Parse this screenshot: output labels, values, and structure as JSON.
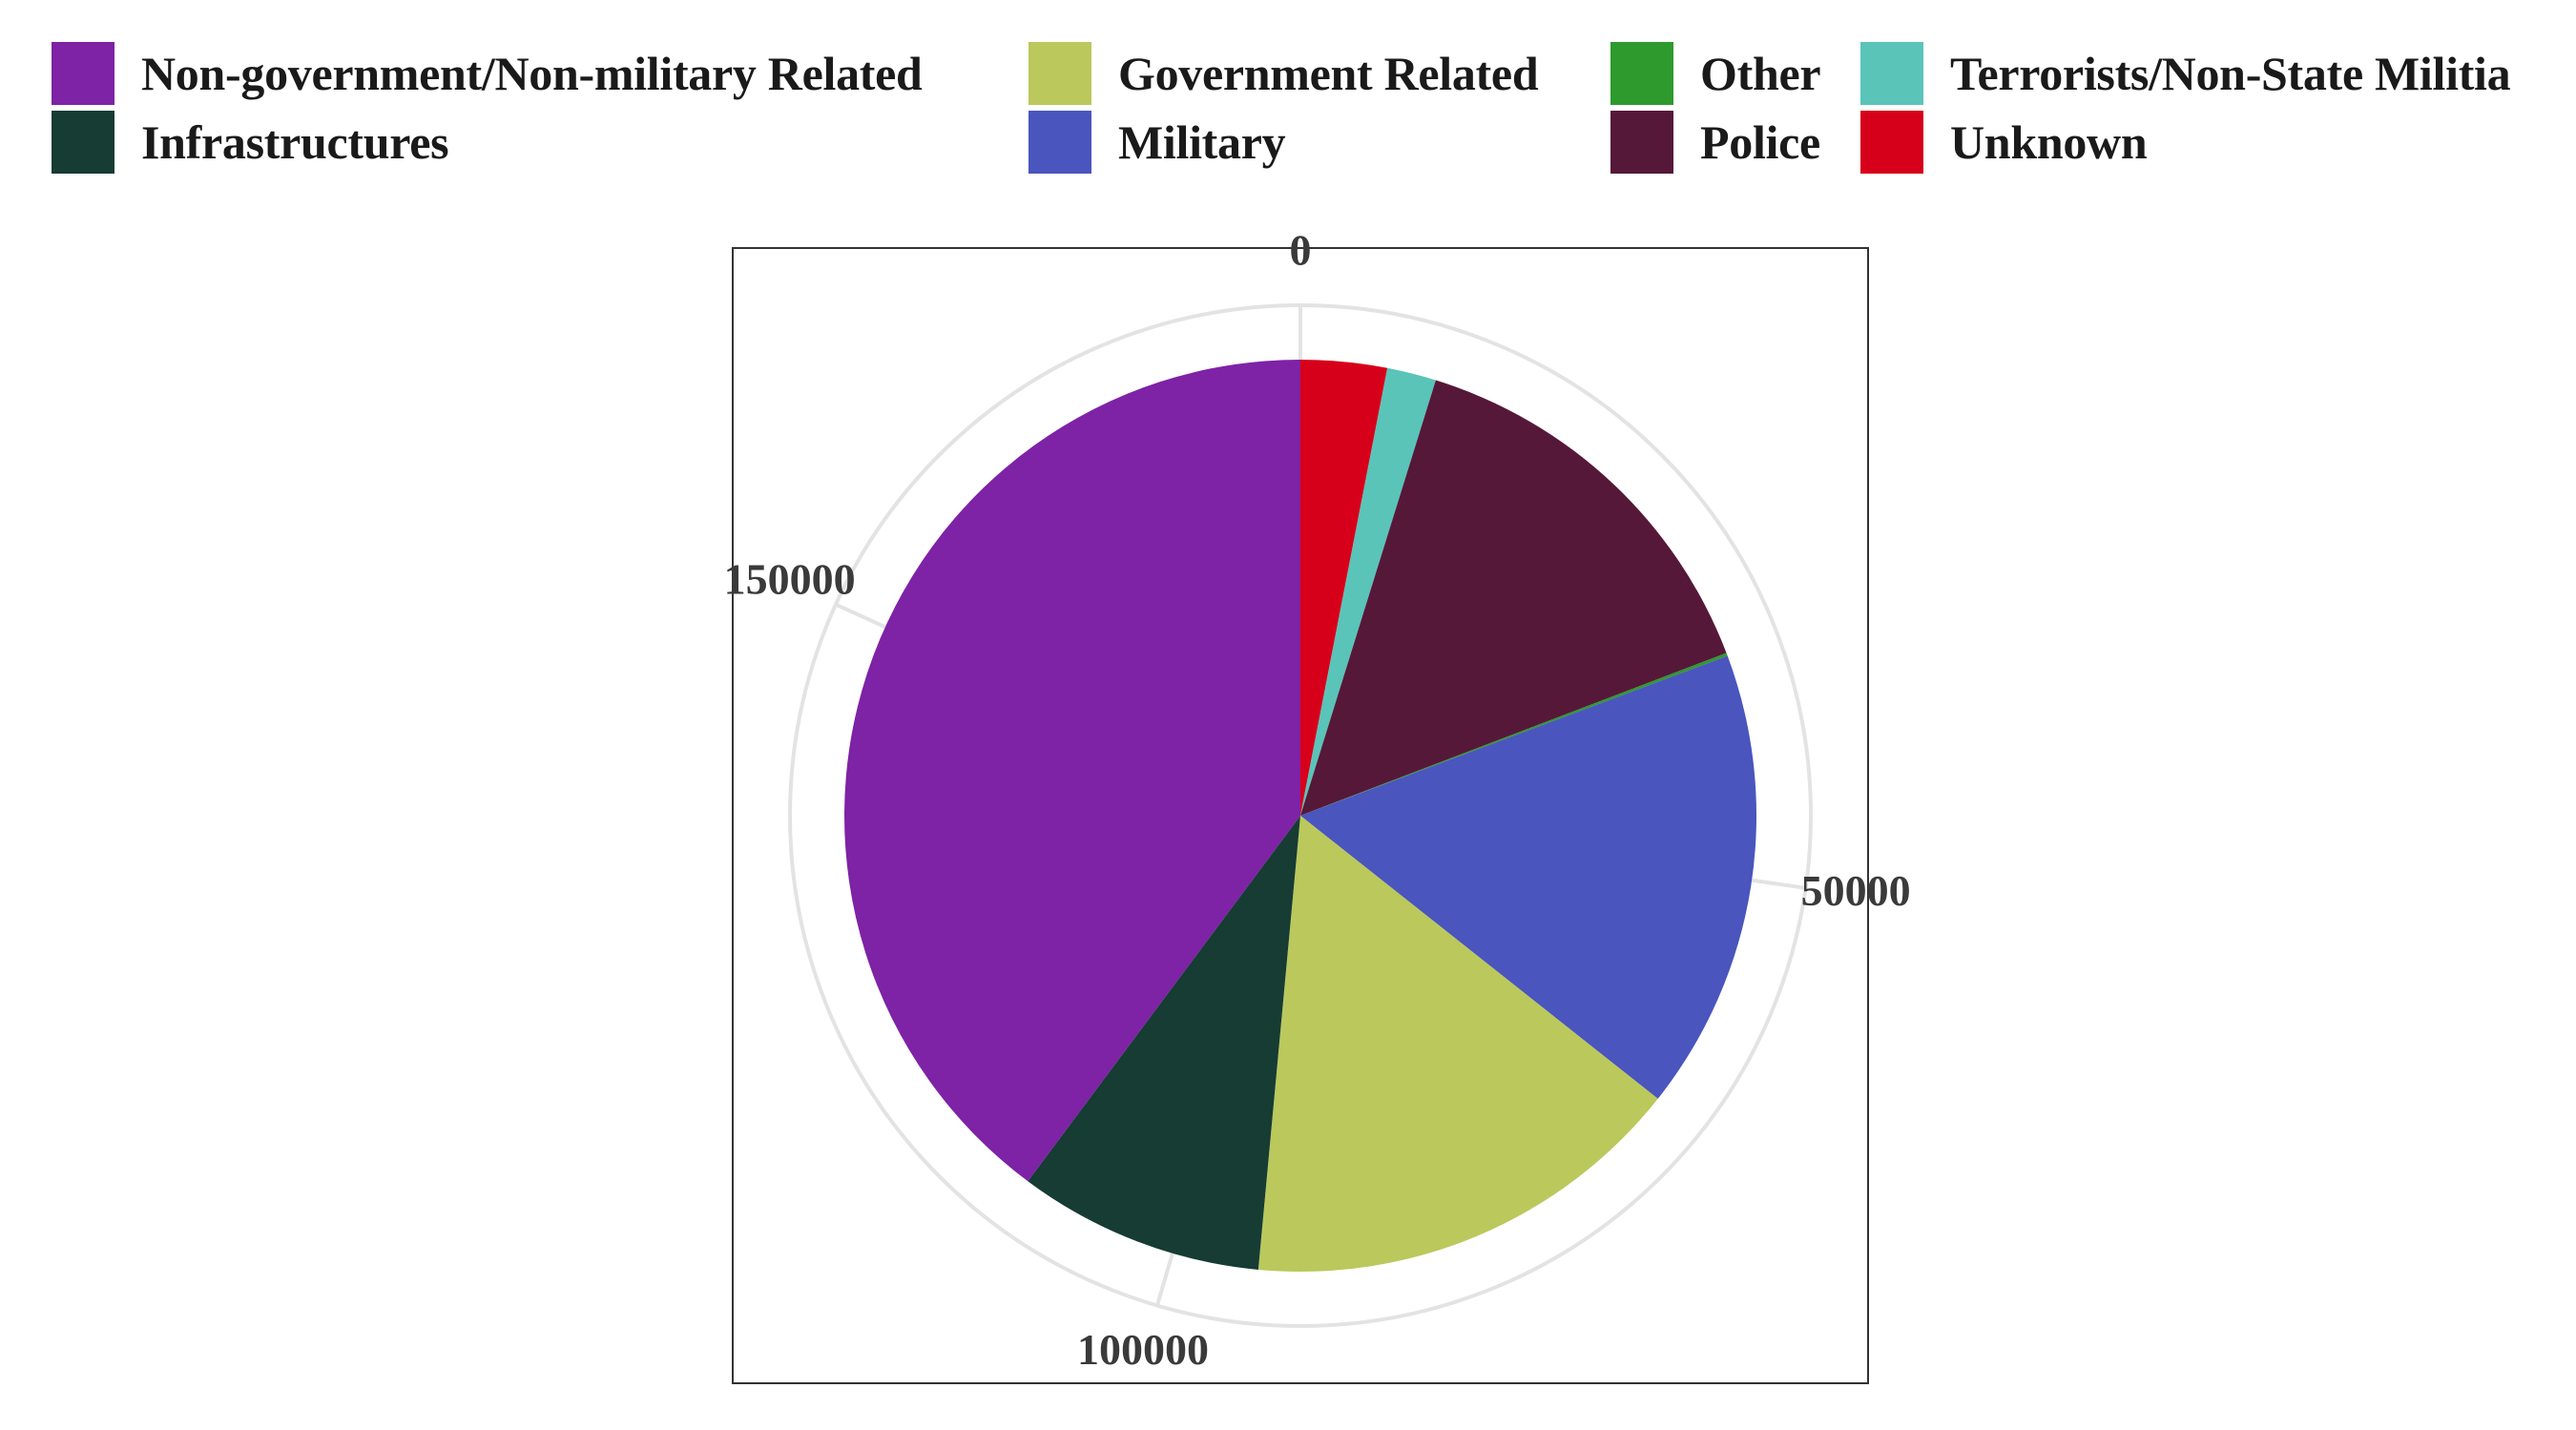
{
  "chart_data": {
    "type": "pie",
    "coord": "polar",
    "title": "",
    "theta_axis": {
      "tick_values": [
        0,
        50000,
        100000,
        150000
      ],
      "tick_labels": [
        "0",
        "50000",
        "100000",
        "150000"
      ],
      "total": 183400
    },
    "grid": true,
    "legend_position": "top",
    "legend_order": [
      "Non-government/Non-military Related",
      "Government Related",
      "Other",
      "Terrorists/Non-State Militia",
      "Infrastructures",
      "Military",
      "Police",
      "Unknown"
    ],
    "slices": [
      {
        "label": "Unknown",
        "value": 5600,
        "color": "#D7001A"
      },
      {
        "label": "Terrorists/Non-State Militia",
        "value": 3200,
        "color": "#5AC4B9"
      },
      {
        "label": "Police",
        "value": 26400,
        "color": "#561839"
      },
      {
        "label": "Other",
        "value": 200,
        "color": "#2E9A2E"
      },
      {
        "label": "Military",
        "value": 30000,
        "color": "#4A55BD"
      },
      {
        "label": "Government Related",
        "value": 29000,
        "color": "#BBC85C"
      },
      {
        "label": "Infrastructures",
        "value": 16000,
        "color": "#163C33"
      },
      {
        "label": "Non-government/Non-military Related",
        "value": 73000,
        "color": "#7E22A6"
      }
    ]
  }
}
